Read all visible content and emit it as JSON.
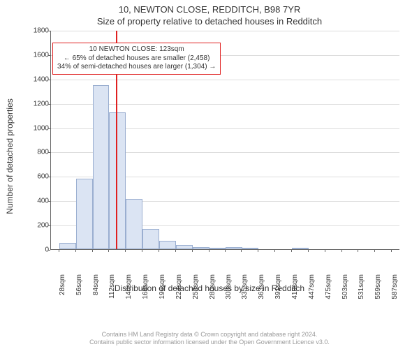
{
  "title_line1": "10, NEWTON CLOSE, REDDITCH, B98 7YR",
  "title_line2": "Size of property relative to detached houses in Redditch",
  "ylabel": "Number of detached properties",
  "xlabel": "Distribution of detached houses by size in Redditch",
  "attribution_line1": "Contains HM Land Registry data © Crown copyright and database right 2024.",
  "attribution_line2": "Contains public sector information licensed under the Open Government Licence v3.0.",
  "chart": {
    "type": "histogram",
    "background_color": "#ffffff",
    "grid_color": "#dddddd",
    "axis_color": "#666666",
    "bar_fill": "#dbe4f3",
    "bar_border": "#9aaed0",
    "yrange": [
      0,
      1800
    ],
    "ytick_step": 200,
    "yticks": [
      0,
      200,
      400,
      600,
      800,
      1000,
      1200,
      1400,
      1600,
      1800
    ],
    "xrange_sqm": [
      14,
      601
    ],
    "xticks_sqm": [
      28,
      56,
      84,
      112,
      140,
      168,
      196,
      224,
      252,
      280,
      308,
      335,
      363,
      391,
      419,
      447,
      475,
      503,
      531,
      559,
      587
    ],
    "xtick_suffix": "sqm",
    "bin_width_sqm": 28,
    "bins": [
      {
        "start_sqm": 28,
        "count": 50
      },
      {
        "start_sqm": 56,
        "count": 580
      },
      {
        "start_sqm": 84,
        "count": 1345
      },
      {
        "start_sqm": 112,
        "count": 1125
      },
      {
        "start_sqm": 140,
        "count": 415
      },
      {
        "start_sqm": 168,
        "count": 165
      },
      {
        "start_sqm": 196,
        "count": 70
      },
      {
        "start_sqm": 224,
        "count": 35
      },
      {
        "start_sqm": 252,
        "count": 20
      },
      {
        "start_sqm": 280,
        "count": 8
      },
      {
        "start_sqm": 308,
        "count": 15
      },
      {
        "start_sqm": 335,
        "count": 4
      },
      {
        "start_sqm": 363,
        "count": 0
      },
      {
        "start_sqm": 391,
        "count": 0
      },
      {
        "start_sqm": 419,
        "count": 2
      },
      {
        "start_sqm": 447,
        "count": 0
      },
      {
        "start_sqm": 475,
        "count": 0
      },
      {
        "start_sqm": 503,
        "count": 0
      },
      {
        "start_sqm": 531,
        "count": 0
      },
      {
        "start_sqm": 559,
        "count": 0
      }
    ],
    "marker": {
      "value_sqm": 123,
      "color": "#e02020"
    },
    "callout": {
      "line1": "10 NEWTON CLOSE: 123sqm",
      "line2": "← 65% of detached houses are smaller (2,458)",
      "line3": "34% of semi-detached houses are larger (1,304) →",
      "border_color": "#e02020",
      "background_color": "#ffffff",
      "fontsize": 10,
      "y_top_value": 1700
    }
  }
}
